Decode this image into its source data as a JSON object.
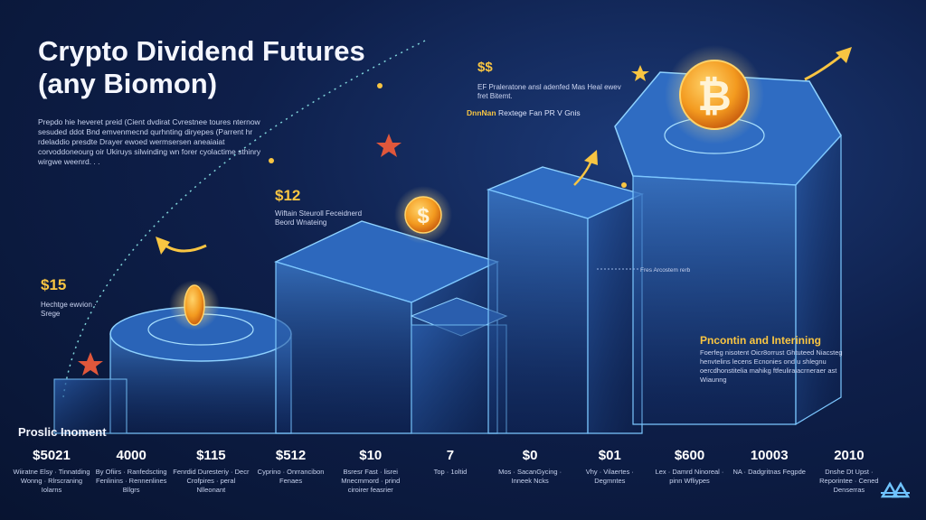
{
  "header": {
    "title": "Crypto Dividend Futures",
    "subtitle": "(any Biomon)",
    "intro": "Prepdo hie heveret preid (Cient dvdirat Cvrestnee toures nternow sesuded ddot Bnd emvenmecnd qurhnting diryepes (Parrent hr rdeladdio presdte Drayer ewoed wermsersen aneaiaiat corvoddoneourg oir Ukiruys silwinding wn forer cyolactime sthinry wirgwe weenrd. . ."
  },
  "callouts": {
    "step1": {
      "price": "$15",
      "note": "Hechtge ewvion · Srege"
    },
    "step2": {
      "price": "$12",
      "note": "Wiftain Steuroll Feceidnerd Beord Wnateing"
    },
    "step3": {
      "price": "$$",
      "note": "EF Praleratone ansl adenfed Mas Heal ewev fret Bitemt.",
      "tag_strong": "DnnNan",
      "tag_text": "Rextege Fan PR V Gnis"
    },
    "mid_tag": "Fres Arcostem rerb",
    "side_title": "Pncontin and Interining",
    "side_body": "Foerfeg nisotent Oicr8orrust Ghtuteed Niacsteg henvtelins lecens Ecnonies ond u shlegnu oercdhonstitelia mahikg ftfeuliraiacrneraer ast Wiaunng"
  },
  "stats": {
    "label": "Proslic Inoment",
    "items": [
      {
        "value": "$5021",
        "desc": "Wiiratne Elsy · Tinnatding Wonng · Rlrscraning Iolarns"
      },
      {
        "value": "4000",
        "desc": "By Ofiirs · Ranfedscting Fenlinins · Rennenlines Bllgrs"
      },
      {
        "value": "$115",
        "desc": "Fenrdid Duresteriy · Decr Crofpires · peral Nlleonant"
      },
      {
        "value": "$512",
        "desc": "Cyprino · Onrrancibon Fenaes"
      },
      {
        "value": "$10",
        "desc": "Bsresr Fast · lisrei Mnecmmord · prind ciroirer feasrier"
      },
      {
        "value": "7",
        "desc": "Top · 1oltid"
      },
      {
        "value": "$0",
        "desc": "Mos · SacanGycing · Inneek Ncks"
      },
      {
        "value": "$01",
        "desc": "Vhy · Vilaertes · Degmntes"
      },
      {
        "value": "$600",
        "desc": "Lex · Damrd Ninoreal · pinn Wfliypes"
      },
      {
        "value": "10003",
        "desc": "NA · Dadgritnas Fegpde"
      },
      {
        "value": "2010",
        "desc": "Dnshe Dt Upst · Reporintee · Cened Denserras"
      }
    ]
  },
  "colors": {
    "accent": "#f8c542",
    "coin": "#f39a1f",
    "glow": "#6fc3ff",
    "background": "#0e1f4a"
  },
  "icons": {
    "coin": "bitcoin-coin-icon",
    "arrow": "growth-arrow-icon",
    "star": "star-icon",
    "logo": "brand-logo-icon"
  }
}
